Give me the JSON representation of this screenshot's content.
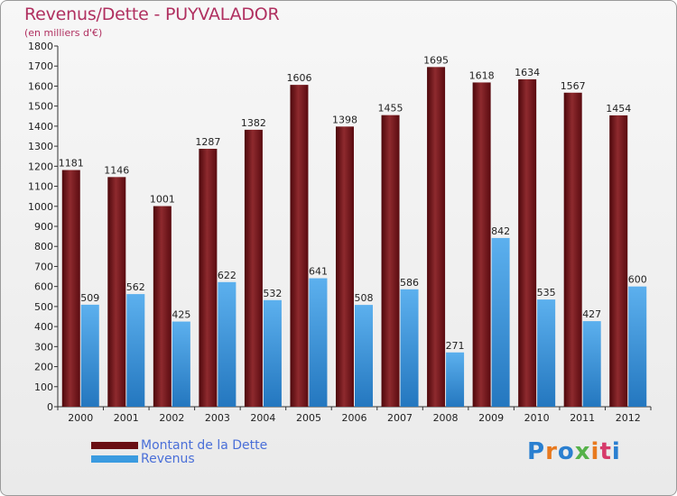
{
  "header": {
    "title": "Revenus/Dette - PUYVALADOR",
    "subtitle": "(en milliers d'€)"
  },
  "legend": {
    "items": [
      {
        "label": "Montant de la Dette",
        "color": "#6a0f14"
      },
      {
        "label": "Revenus",
        "color": "#3b9be0"
      }
    ]
  },
  "logo": {
    "text": "Proxiti"
  },
  "chart_data": {
    "type": "bar",
    "title": "Revenus/Dette - PUYVALADOR",
    "subtitle": "(en milliers d'€)",
    "categories": [
      "2000",
      "2001",
      "2002",
      "2003",
      "2004",
      "2005",
      "2006",
      "2007",
      "2008",
      "2009",
      "2010",
      "2011",
      "2012"
    ],
    "series": [
      {
        "name": "Montant de la Dette",
        "color": "#6a0f14",
        "values": [
          1181,
          1146,
          1001,
          1287,
          1382,
          1606,
          1398,
          1455,
          1695,
          1618,
          1634,
          1567,
          1454
        ]
      },
      {
        "name": "Revenus",
        "color": "#3b9be0",
        "values": [
          509,
          562,
          425,
          622,
          532,
          641,
          508,
          586,
          271,
          842,
          535,
          427,
          600
        ]
      }
    ],
    "ylim": [
      0,
      1800
    ],
    "yticks": [
      0,
      100,
      200,
      300,
      400,
      500,
      600,
      700,
      800,
      900,
      1000,
      1100,
      1200,
      1300,
      1400,
      1500,
      1600,
      1700,
      1800
    ],
    "grid": false,
    "legend_position": "bottom-left"
  }
}
